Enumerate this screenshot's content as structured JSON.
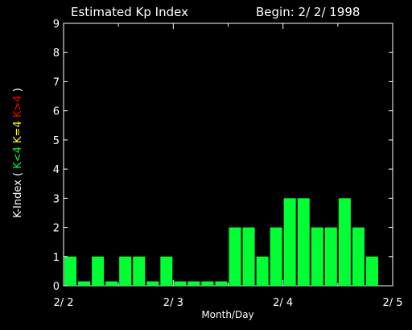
{
  "chart_data": {
    "type": "bar",
    "title": "Estimated Kp Index",
    "begin_label": "Begin: 2/ 2/ 1998",
    "xlabel": "Month/Day",
    "ylabel": {
      "main": "K-Index",
      "open": "(",
      "low": "K<4",
      "mid": "K=4",
      "high": "K>4",
      "close": ")"
    },
    "ylim": [
      0,
      9
    ],
    "yticks": [
      "0",
      "1",
      "2",
      "3",
      "4",
      "5",
      "6",
      "7",
      "8",
      "9"
    ],
    "xticks": [
      {
        "label": "2/ 2",
        "index": 0
      },
      {
        "label": "2/ 3",
        "index": 8
      },
      {
        "label": "2/ 4",
        "index": 16
      },
      {
        "label": "2/ 5",
        "index": 24
      }
    ],
    "interval_hours": 3,
    "values": [
      1,
      0.15,
      1,
      0.15,
      1,
      1,
      0.15,
      1,
      0.15,
      0.15,
      0.15,
      0.15,
      2,
      2,
      1,
      2,
      3,
      3,
      2,
      2,
      3,
      2,
      1
    ],
    "colors": {
      "low": "#00ff33",
      "mid": "#ffff00",
      "high": "#ff0000",
      "axis": "#ffffff",
      "background": "#000000"
    }
  }
}
